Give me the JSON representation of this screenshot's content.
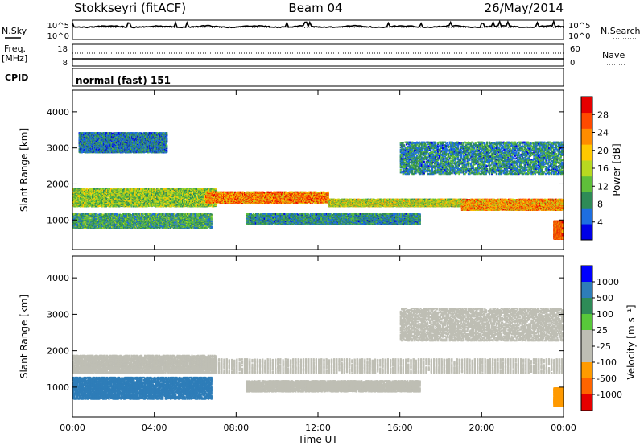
{
  "header": {
    "station": "Stokkseyri (fitACF)",
    "beam": "Beam 04",
    "date": "26/May/2014"
  },
  "noise_panel": {
    "left_label": "N.Sky",
    "right_label": "N.Search",
    "tick_top": "10^5",
    "tick_bottom": "10^0"
  },
  "freq_panel": {
    "left_label_line1": "Freq.",
    "left_label_line2": "[MHz]",
    "right_label": "Nave",
    "left_tick_top": "18",
    "left_tick_bottom": "8",
    "right_tick_top": "60",
    "right_tick_bottom": "0"
  },
  "cpid": {
    "label": "CPID",
    "value": "normal (fast) 151"
  },
  "time_axis": {
    "label": "Time UT",
    "ticks": [
      "00:00",
      "04:00",
      "08:00",
      "12:00",
      "16:00",
      "20:00",
      "00:00"
    ]
  },
  "colors": {
    "power_scale": [
      "#0000e6",
      "#1e6ee0",
      "#2e8b57",
      "#5fbf3a",
      "#b8d920",
      "#ffc800",
      "#ff8c00",
      "#ff4a00",
      "#e60000"
    ],
    "velocity_scale": [
      "#0000ff",
      "#2e7db8",
      "#2e8b57",
      "#58c83a",
      "#bebeb4",
      "#bebeb4",
      "#ff9b00",
      "#ff6400",
      "#e60000"
    ]
  },
  "chart_data": [
    {
      "type": "heatmap",
      "name": "power",
      "xlabel": "Time UT",
      "ylabel": "Slant Range [km]",
      "xlim": [
        0,
        24
      ],
      "ylim": [
        180,
        4600
      ],
      "y_ticks": [
        1000,
        2000,
        3000,
        4000
      ],
      "colorbar": {
        "label": "Power [dB]",
        "min": 0,
        "max": 32,
        "ticks": [
          4,
          8,
          12,
          16,
          20,
          24,
          28
        ]
      },
      "features": [
        {
          "t_start": 0.0,
          "t_end": 7.0,
          "range_low": 1400,
          "range_high": 1900,
          "value": 14
        },
        {
          "t_start": 0.0,
          "t_end": 6.8,
          "range_low": 800,
          "range_high": 1200,
          "value": 10
        },
        {
          "t_start": 0.3,
          "t_end": 4.6,
          "range_low": 2900,
          "range_high": 3450,
          "value": 7
        },
        {
          "t_start": 6.5,
          "t_end": 12.5,
          "range_low": 1500,
          "range_high": 1800,
          "value": 24
        },
        {
          "t_start": 12.5,
          "t_end": 19.0,
          "range_low": 1400,
          "range_high": 1600,
          "value": 16
        },
        {
          "t_start": 8.5,
          "t_end": 17.0,
          "range_low": 900,
          "range_high": 1200,
          "value": 8
        },
        {
          "t_start": 19.0,
          "t_end": 24.0,
          "range_low": 1300,
          "range_high": 1600,
          "value": 22
        },
        {
          "t_start": 16.0,
          "t_end": 24.0,
          "range_low": 2300,
          "range_high": 3200,
          "value": 8
        },
        {
          "t_start": 23.5,
          "t_end": 24.0,
          "range_low": 500,
          "range_high": 1000,
          "value": 26
        }
      ]
    },
    {
      "type": "heatmap",
      "name": "velocity",
      "xlabel": "Time UT",
      "ylabel": "Slant Range [km]",
      "xlim": [
        0,
        24
      ],
      "ylim": [
        180,
        4600
      ],
      "y_ticks": [
        1000,
        2000,
        3000,
        4000
      ],
      "colorbar": {
        "label": "Velocity [m s⁻¹]",
        "levels": [
          "1000",
          "500",
          "100",
          "25",
          "-25",
          "-100",
          "-500",
          "-1000"
        ]
      },
      "features": [
        {
          "t_start": 0.0,
          "t_end": 7.0,
          "range_low": 1400,
          "range_high": 1900,
          "value": 10
        },
        {
          "t_start": 0.0,
          "t_end": 6.8,
          "range_low": 700,
          "range_high": 1300,
          "value": 600
        },
        {
          "t_start": 6.5,
          "t_end": 24.0,
          "range_low": 1400,
          "range_high": 1800,
          "value": 0
        },
        {
          "t_start": 8.5,
          "t_end": 17.0,
          "range_low": 900,
          "range_high": 1200,
          "value": 0
        },
        {
          "t_start": 16.0,
          "t_end": 24.0,
          "range_low": 2300,
          "range_high": 3200,
          "value": 0
        },
        {
          "t_start": 23.5,
          "t_end": 24.0,
          "range_low": 500,
          "range_high": 1000,
          "value": -50
        }
      ]
    }
  ]
}
